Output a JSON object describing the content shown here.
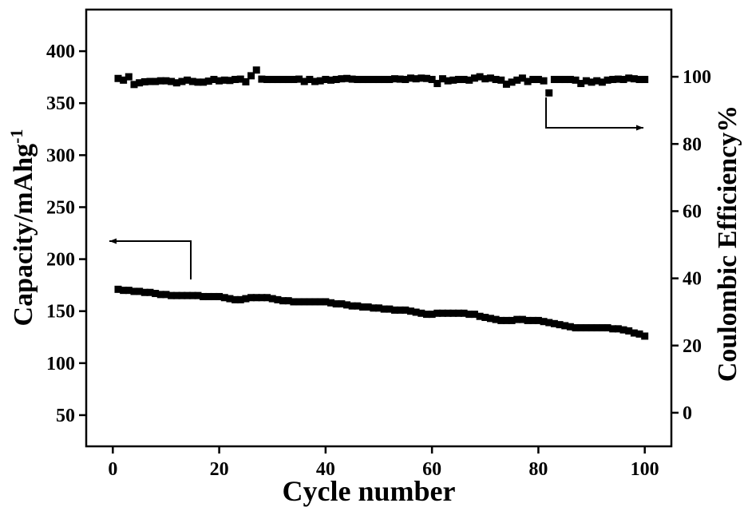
{
  "chart_data": {
    "type": "scatter",
    "xlabel": "Cycle number",
    "ylabel_left": {
      "main": "Capacity/mAhg",
      "sup": "-1"
    },
    "ylabel_right": "Coulombic Efficiency%",
    "xlim": [
      -5,
      105
    ],
    "ylim_left": [
      20,
      440
    ],
    "ylim_right": [
      -10,
      120
    ],
    "x_ticks": [
      0,
      20,
      40,
      60,
      80,
      100
    ],
    "y_left_ticks": [
      50,
      100,
      150,
      200,
      250,
      300,
      350,
      400
    ],
    "y_right_ticks": [
      0,
      20,
      40,
      60,
      80,
      100
    ],
    "marker": "square",
    "color": "#000000",
    "legend": "none",
    "grid": false,
    "series": [
      {
        "axis": "left",
        "x": [
          1,
          2,
          3,
          4,
          5,
          6,
          7,
          8,
          9,
          10,
          11,
          12,
          13,
          14,
          15,
          16,
          17,
          18,
          19,
          20,
          21,
          22,
          23,
          24,
          25,
          26,
          27,
          28,
          29,
          30,
          31,
          32,
          33,
          34,
          35,
          36,
          37,
          38,
          39,
          40,
          41,
          42,
          43,
          44,
          45,
          46,
          47,
          48,
          49,
          50,
          51,
          52,
          53,
          54,
          55,
          56,
          57,
          58,
          59,
          60,
          61,
          62,
          63,
          64,
          65,
          66,
          67,
          68,
          69,
          70,
          71,
          72,
          73,
          74,
          75,
          76,
          77,
          78,
          79,
          80,
          81,
          82,
          83,
          84,
          85,
          86,
          87,
          88,
          89,
          90,
          91,
          92,
          93,
          94,
          95,
          96,
          97,
          98,
          99,
          100
        ],
        "values": [
          171,
          170,
          170,
          169,
          169,
          168,
          168,
          167,
          166,
          166,
          165,
          165,
          165,
          165,
          165,
          165,
          164,
          164,
          164,
          164,
          163,
          162,
          161,
          161,
          162,
          163,
          163,
          163,
          163,
          162,
          161,
          160,
          160,
          159,
          159,
          159,
          159,
          159,
          159,
          159,
          158,
          157,
          157,
          156,
          155,
          155,
          154,
          154,
          153,
          153,
          152,
          152,
          151,
          151,
          151,
          150,
          149,
          148,
          147,
          147,
          148,
          148,
          148,
          148,
          148,
          148,
          147,
          147,
          145,
          144,
          143,
          142,
          141,
          141,
          141,
          142,
          142,
          141,
          141,
          141,
          140,
          139,
          138,
          137,
          136,
          135,
          134,
          134,
          134,
          134,
          134,
          134,
          134,
          133,
          133,
          132,
          131,
          129,
          128,
          126
        ]
      },
      {
        "axis": "right",
        "x": [
          1,
          2,
          3,
          4,
          5,
          6,
          7,
          8,
          9,
          10,
          11,
          12,
          13,
          14,
          15,
          16,
          17,
          18,
          19,
          20,
          21,
          22,
          23,
          24,
          25,
          26,
          27,
          28,
          29,
          30,
          31,
          32,
          33,
          34,
          35,
          36,
          37,
          38,
          39,
          40,
          41,
          42,
          43,
          44,
          45,
          46,
          47,
          48,
          49,
          50,
          51,
          52,
          53,
          54,
          55,
          56,
          57,
          58,
          59,
          60,
          61,
          62,
          63,
          64,
          65,
          66,
          67,
          68,
          69,
          70,
          71,
          72,
          73,
          74,
          75,
          76,
          77,
          78,
          79,
          80,
          81,
          82,
          83,
          84,
          85,
          86,
          87,
          88,
          89,
          90,
          91,
          92,
          93,
          94,
          95,
          96,
          97,
          98,
          99,
          100
        ],
        "values": [
          99.5,
          99.0,
          100.0,
          97.7,
          98.2,
          98.5,
          98.6,
          98.6,
          98.8,
          98.8,
          98.6,
          98.2,
          98.6,
          99.0,
          98.6,
          98.4,
          98.4,
          98.7,
          99.2,
          98.8,
          99.0,
          98.9,
          99.2,
          99.3,
          98.5,
          100.3,
          102.0,
          99.3,
          99.2,
          99.2,
          99.2,
          99.2,
          99.2,
          99.2,
          99.3,
          98.6,
          99.2,
          98.6,
          98.8,
          99.2,
          99.0,
          99.2,
          99.4,
          99.5,
          99.3,
          99.2,
          99.2,
          99.2,
          99.2,
          99.2,
          99.2,
          99.2,
          99.4,
          99.3,
          99.2,
          99.6,
          99.4,
          99.6,
          99.5,
          99.2,
          98.0,
          99.4,
          98.8,
          99.0,
          99.2,
          99.2,
          99.0,
          99.6,
          100.0,
          99.4,
          99.6,
          99.2,
          99.0,
          97.8,
          98.4,
          99.0,
          99.6,
          98.6,
          99.2,
          99.2,
          98.8,
          95.2,
          99.2,
          99.2,
          99.2,
          99.2,
          99.0,
          98.0,
          98.8,
          98.4,
          98.8,
          98.4,
          99.0,
          99.2,
          99.3,
          99.2,
          99.6,
          99.4,
          99.2,
          99.2
        ]
      }
    ]
  }
}
